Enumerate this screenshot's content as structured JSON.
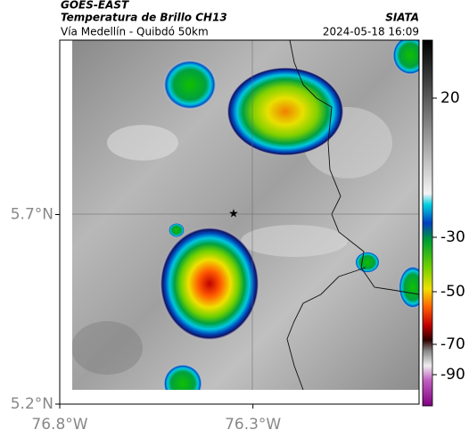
{
  "header": {
    "title": "GOES-EAST",
    "subtitle": "Temperatura de Brillo CH13",
    "source": "SIATA",
    "location": "Vía Medellín - Quibdó 50km",
    "timestamp": "2024-05-18 16:09"
  },
  "map": {
    "xlim": [
      -76.8,
      -75.87
    ],
    "ylim": [
      5.2,
      6.16
    ],
    "yticks": [
      {
        "value": 5.7,
        "label": "5.7°N"
      },
      {
        "value": 5.2,
        "label": "5.2°N"
      }
    ],
    "xticks": [
      {
        "value": -76.8,
        "label": "76.8°W"
      },
      {
        "value": -76.3,
        "label": "76.3°W"
      }
    ]
  },
  "colorbar": {
    "ticks": [
      20,
      -30,
      -50,
      -70,
      -90
    ]
  }
}
